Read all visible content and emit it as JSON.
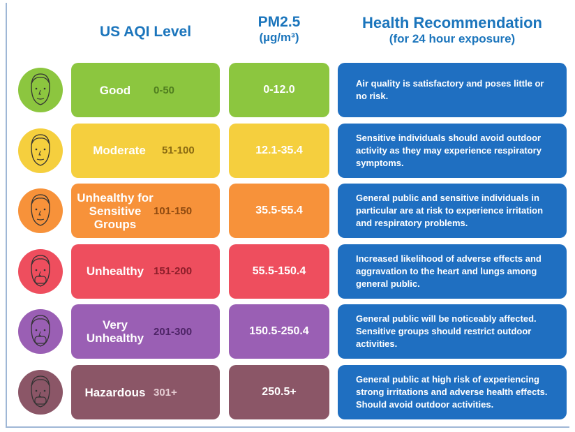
{
  "header": {
    "level": "US AQI Level",
    "pm_title": "PM2.5",
    "pm_unit": "(µg/m³)",
    "rec_title": "Health Recommendation",
    "rec_sub": "(for 24 hour exposure)"
  },
  "rows": [
    {
      "level": "Good",
      "range": "0-50",
      "pm": "0-12.0",
      "recommendation": "Air quality is satisfactory and poses little or no risk."
    },
    {
      "level": "Moderate",
      "range": "51-100",
      "pm": "12.1-35.4",
      "recommendation": "Sensitive individuals should avoid outdoor activity as they may experience respiratory symptoms."
    },
    {
      "level": "Unhealthy for Sensitive Groups",
      "range": "101-150",
      "pm": "35.5-55.4",
      "recommendation": "General public and sensitive individuals in particular are at risk to experience irritation and respiratory problems."
    },
    {
      "level": "Unhealthy",
      "range": "151-200",
      "pm": "55.5-150.4",
      "recommendation": "Increased likelihood of adverse effects and aggravation to the heart and lungs among general public."
    },
    {
      "level": "Very Unhealthy",
      "range": "201-300",
      "pm": "150.5-250.4",
      "recommendation": "General public will be noticeably affected. Sensitive groups should restrict outdoor activities."
    },
    {
      "level": "Hazardous",
      "range": "301+",
      "pm": "250.5+",
      "recommendation": "General public at high risk of experiencing strong irritations and adverse health effects. Should avoid outdoor activities."
    }
  ]
}
